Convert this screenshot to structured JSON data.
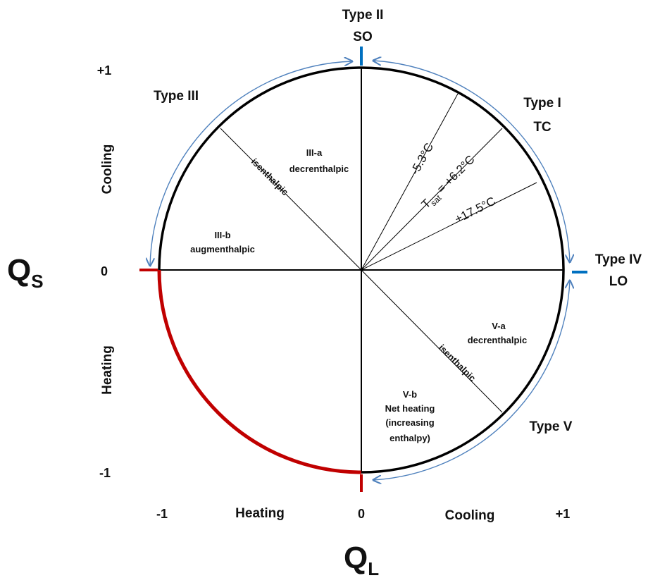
{
  "diagram": {
    "axis_titles": {
      "x_main": "Q",
      "x_sub": "L",
      "y_main": "Q",
      "y_sub": "S"
    },
    "x_ticks": [
      "-1",
      "0",
      "+1"
    ],
    "y_ticks": [
      "+1",
      "0",
      "-1"
    ],
    "x_labels": {
      "left": "Heating",
      "right": "Cooling"
    },
    "y_labels": {
      "top": "Cooling",
      "bottom": "Heating"
    },
    "types": {
      "type_i": [
        "Type I",
        "TC"
      ],
      "type_ii": [
        "Type II",
        "SO"
      ],
      "type_iii": [
        "Type III"
      ],
      "type_iv": [
        "Type IV",
        "LO"
      ],
      "type_v": [
        "Type V"
      ]
    },
    "regions": {
      "iii_a": [
        "III-a",
        "decrenthalpic"
      ],
      "iii_b": [
        "III-b",
        "augmenthalpic"
      ],
      "v_a": [
        "V-a",
        "decrenthalpic"
      ],
      "v_b": [
        "V-b",
        "Net heating",
        "(increasing",
        "enthalpy)"
      ]
    },
    "isenthalpic_label": "isenthalpic",
    "temperature_lines": {
      "t1": "-5.3°C",
      "t2_prefix": "T",
      "t2_sub": "sat",
      "t2_value": " = +6.2°C",
      "t3": "+17.5°C"
    },
    "colors": {
      "circle": "#000000",
      "heating_arc": "#c00000",
      "arrow": "#4f81bd",
      "marker_blue": "#0070c0",
      "marker_red": "#c00000",
      "thin_line": "#808080"
    }
  }
}
